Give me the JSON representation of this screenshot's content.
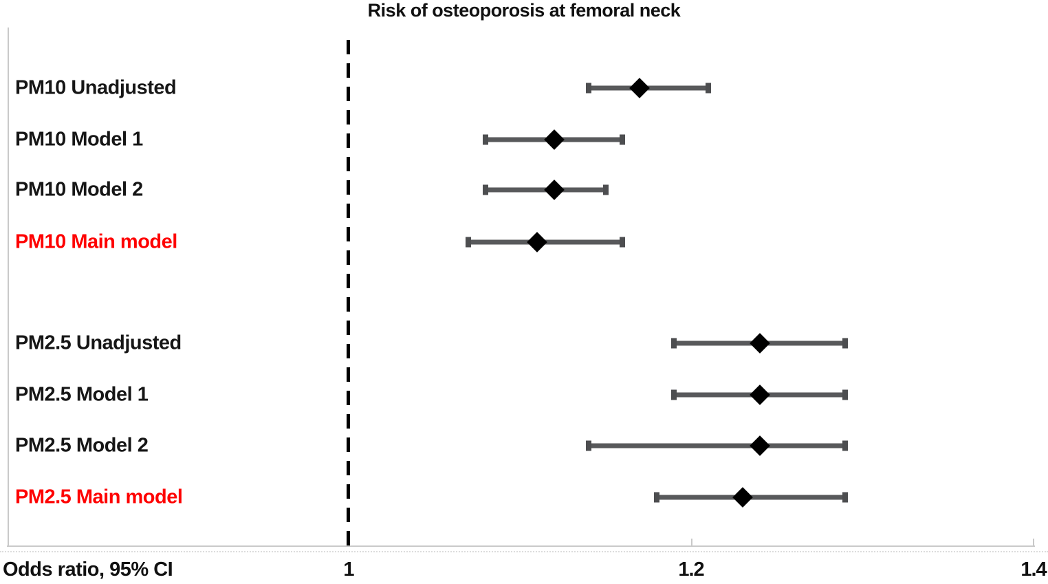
{
  "title": "Risk of osteoporosis at femoral neck",
  "axis": {
    "caption": "Odds ratio, 95% CI",
    "ticks": [
      {
        "label": "1",
        "value": 1.0
      },
      {
        "label": "1.2",
        "value": 1.2
      },
      {
        "label": "1.4",
        "value": 1.4
      }
    ]
  },
  "colors": {
    "label_default": "#161616",
    "label_highlight": "#fe0000",
    "ci_bar": "#58595b",
    "marker": "#000000",
    "axis_frame": "#c9c9c9",
    "reference_line": "#000000"
  },
  "chart_data": {
    "type": "scatter",
    "subtype": "forest-plot",
    "title": "Risk of osteoporosis at femoral neck",
    "xlabel": "Odds ratio, 95% CI",
    "xlim": [
      0.8,
      1.41
    ],
    "x_ticks": [
      1.0,
      1.2,
      1.4
    ],
    "reference_line_x": 1.0,
    "grid": false,
    "marker_shape": "diamond",
    "series": [
      {
        "name": "PM10 Unadjusted",
        "group": "PM10",
        "highlight": false,
        "or": 1.17,
        "ci_low": 1.14,
        "ci_high": 1.21
      },
      {
        "name": "PM10 Model 1",
        "group": "PM10",
        "highlight": false,
        "or": 1.12,
        "ci_low": 1.08,
        "ci_high": 1.16
      },
      {
        "name": "PM10 Model 2",
        "group": "PM10",
        "highlight": false,
        "or": 1.12,
        "ci_low": 1.08,
        "ci_high": 1.15
      },
      {
        "name": "PM10 Main model",
        "group": "PM10",
        "highlight": true,
        "or": 1.11,
        "ci_low": 1.07,
        "ci_high": 1.16
      },
      {
        "name": "PM2.5 Unadjusted",
        "group": "PM2.5",
        "highlight": false,
        "or": 1.24,
        "ci_low": 1.19,
        "ci_high": 1.29
      },
      {
        "name": "PM2.5 Model 1",
        "group": "PM2.5",
        "highlight": false,
        "or": 1.24,
        "ci_low": 1.19,
        "ci_high": 1.29
      },
      {
        "name": "PM2.5 Model 2",
        "group": "PM2.5",
        "highlight": false,
        "or": 1.24,
        "ci_low": 1.14,
        "ci_high": 1.29
      },
      {
        "name": "PM2.5 Main model",
        "group": "PM2.5",
        "highlight": true,
        "or": 1.23,
        "ci_low": 1.18,
        "ci_high": 1.29
      }
    ]
  }
}
